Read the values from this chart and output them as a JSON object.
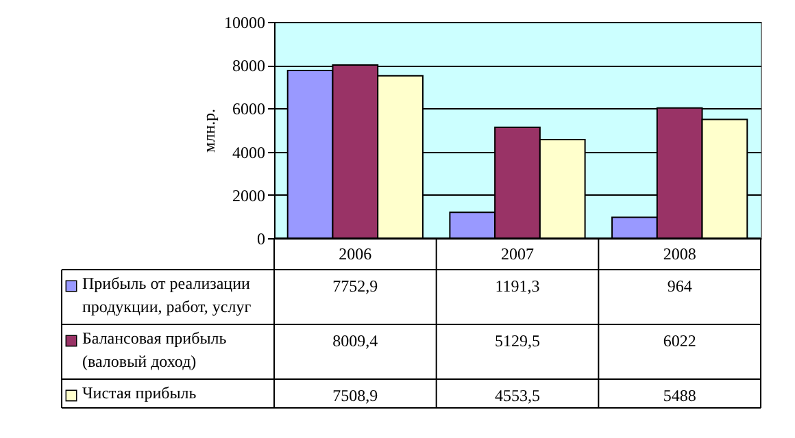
{
  "chart_data": {
    "type": "bar",
    "ylabel": "млн.р.",
    "categories": [
      "2006",
      "2007",
      "2008"
    ],
    "series": [
      {
        "name": "Прибыль от реализации продукции, работ, услуг",
        "color": "#9999ff",
        "values": [
          7752.9,
          1191.3,
          964
        ],
        "value_labels": [
          "7752,9",
          "1191,3",
          "964"
        ]
      },
      {
        "name": "Балансовая прибыль (валовый доход)",
        "color": "#993366",
        "values": [
          8009.4,
          5129.5,
          6022
        ],
        "value_labels": [
          "8009,4",
          "5129,5",
          "6022"
        ]
      },
      {
        "name": "Чистая прибыль",
        "color": "#ffffcc",
        "values": [
          7508.9,
          4553.5,
          5488
        ],
        "value_labels": [
          "7508,9",
          "4553,5",
          "5488"
        ]
      }
    ],
    "ylim": [
      0,
      10000
    ],
    "yticks": [
      0,
      2000,
      4000,
      6000,
      8000,
      10000
    ],
    "grid": "y",
    "legend": "bottom left"
  }
}
